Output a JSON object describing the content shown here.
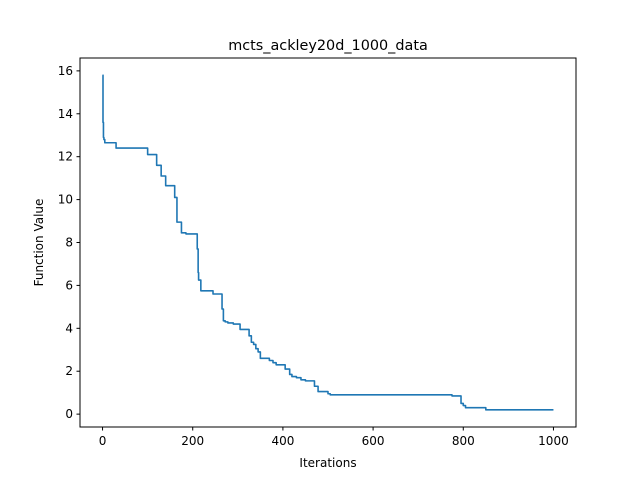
{
  "chart_data": {
    "type": "line",
    "title": "mcts_ackley20d_1000_data",
    "xlabel": "Iterations",
    "ylabel": "Function Value",
    "xlim": [
      -50,
      1050
    ],
    "ylim": [
      -0.6,
      16.6
    ],
    "xticks": [
      0,
      200,
      400,
      600,
      800,
      1000
    ],
    "yticks": [
      0,
      2,
      4,
      6,
      8,
      10,
      12,
      14,
      16
    ],
    "grid": false,
    "legend": "none",
    "series": [
      {
        "color": "#1f77b4",
        "step": true,
        "x": [
          0,
          1,
          2,
          3,
          5,
          30,
          100,
          120,
          130,
          140,
          155,
          160,
          165,
          175,
          185,
          190,
          210,
          212,
          213,
          215,
          218,
          225,
          245,
          265,
          268,
          272,
          278,
          290,
          305,
          325,
          330,
          335,
          340,
          345,
          350,
          370,
          378,
          385,
          405,
          415,
          420,
          425,
          430,
          440,
          450,
          470,
          478,
          483,
          500,
          505,
          550,
          560,
          700,
          775,
          795,
          800,
          805,
          815,
          850,
          1000
        ],
        "y": [
          15.8,
          13.6,
          12.9,
          12.8,
          12.65,
          12.4,
          12.1,
          11.6,
          11.1,
          10.65,
          10.65,
          10.1,
          8.95,
          8.45,
          8.4,
          8.4,
          7.7,
          6.6,
          6.25,
          6.25,
          5.75,
          5.75,
          5.6,
          4.9,
          4.35,
          4.3,
          4.25,
          4.2,
          3.95,
          3.65,
          3.35,
          3.25,
          3.05,
          2.9,
          2.6,
          2.5,
          2.4,
          2.3,
          2.1,
          1.85,
          1.75,
          1.75,
          1.7,
          1.6,
          1.55,
          1.3,
          1.05,
          1.05,
          0.95,
          0.9,
          0.9,
          0.9,
          0.9,
          0.85,
          0.5,
          0.4,
          0.3,
          0.3,
          0.2,
          0.2
        ]
      }
    ]
  }
}
